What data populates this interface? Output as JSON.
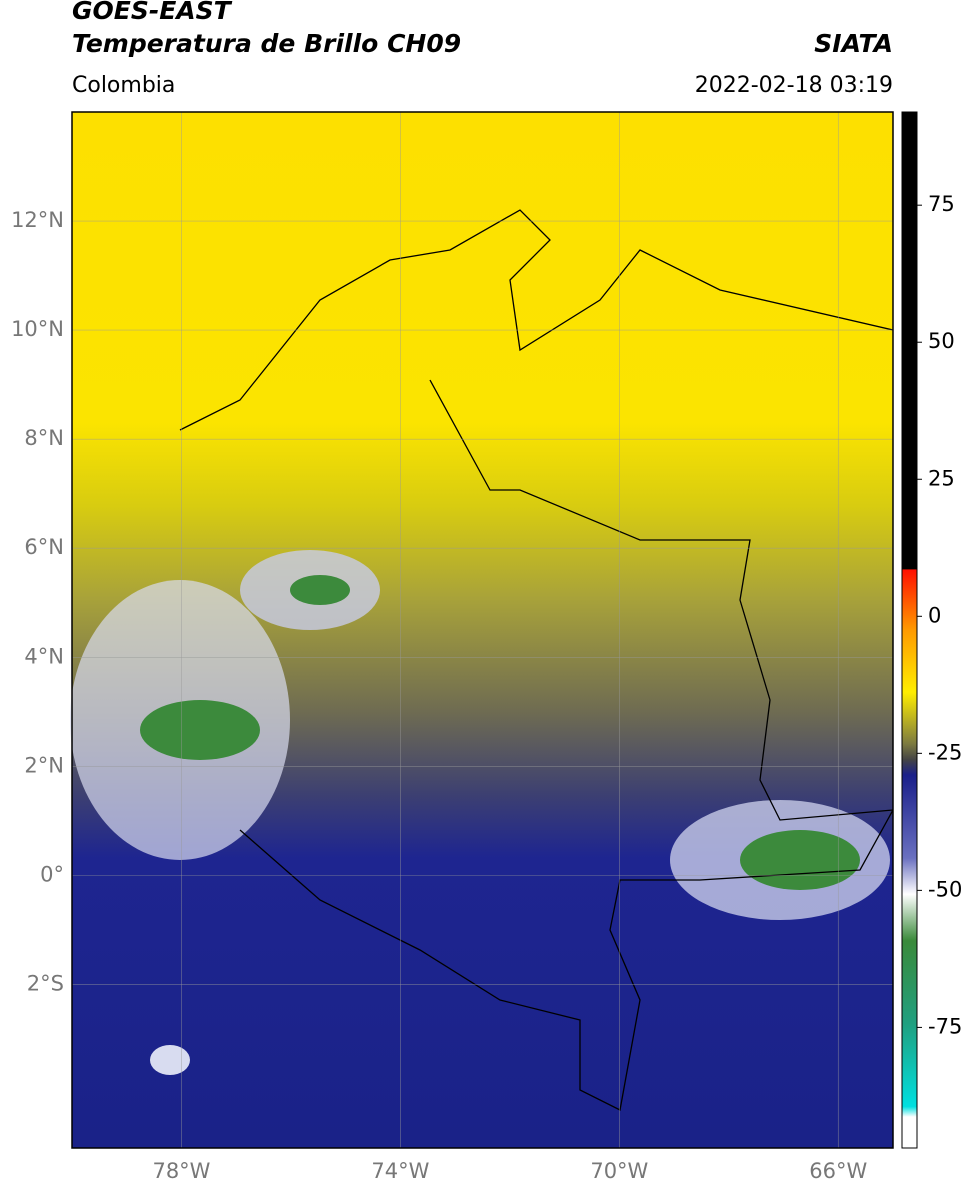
{
  "header": {
    "title": "GOES-EAST",
    "subtitle": "Temperatura de Brillo CH09",
    "source": "SIATA",
    "region": "Colombia",
    "datetime": "2022-02-18 03:19"
  },
  "map": {
    "lonlim": [
      -80,
      -65
    ],
    "latlim": [
      -5,
      14
    ],
    "xticks": [
      {
        "value": -78,
        "label": "78°W"
      },
      {
        "value": -74,
        "label": "74°W"
      },
      {
        "value": -70,
        "label": "70°W"
      },
      {
        "value": -66,
        "label": "66°W"
      }
    ],
    "yticks": [
      {
        "value": 12,
        "label": "12°N"
      },
      {
        "value": 10,
        "label": "10°N"
      },
      {
        "value": 8,
        "label": "8°N"
      },
      {
        "value": 6,
        "label": "6°N"
      },
      {
        "value": 4,
        "label": "4°N"
      },
      {
        "value": 2,
        "label": "2°N"
      },
      {
        "value": 0,
        "label": "0°"
      },
      {
        "value": -2,
        "label": "2°S"
      }
    ],
    "grid": true
  },
  "colorbar": {
    "lim": [
      -97,
      92
    ],
    "ticks": [
      75,
      50,
      25,
      0,
      -25,
      -50,
      -75
    ]
  }
}
